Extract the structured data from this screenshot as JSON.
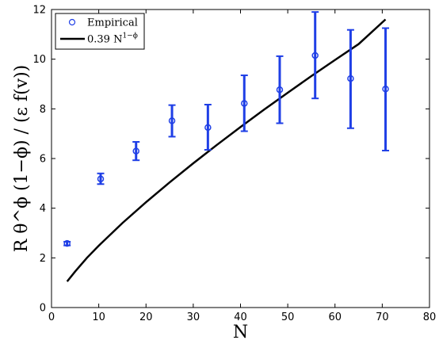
{
  "chart_data": {
    "type": "scatter",
    "xlabel": "N",
    "ylabel": "R θ^ϕ (1−ϕ) / (ε f(v))",
    "xlim": [
      0,
      80
    ],
    "ylim": [
      0,
      12
    ],
    "xticks": [
      0,
      10,
      20,
      30,
      40,
      50,
      60,
      70,
      80
    ],
    "yticks": [
      0,
      2,
      4,
      6,
      8,
      10,
      12
    ],
    "grid": false,
    "legend_position": "top-left",
    "series": [
      {
        "name": "Empirical",
        "kind": "errorbar",
        "color": "#1f3fe6",
        "x": [
          3.3,
          10.4,
          17.9,
          25.5,
          33.1,
          40.8,
          48.3,
          55.8,
          63.3,
          70.7
        ],
        "y": [
          2.58,
          5.18,
          6.3,
          7.52,
          7.25,
          8.22,
          8.77,
          10.15,
          9.22,
          8.8
        ],
        "y_low": [
          2.5,
          4.97,
          5.93,
          6.88,
          6.35,
          7.1,
          7.42,
          8.42,
          7.22,
          6.32
        ],
        "y_high": [
          2.65,
          5.4,
          6.67,
          8.15,
          8.17,
          9.35,
          10.12,
          11.9,
          11.18,
          11.25
        ]
      },
      {
        "name": "0.39 N",
        "name_superscript": "1−ϕ",
        "kind": "line",
        "color": "#000000",
        "x": [
          3.3,
          5,
          7.5,
          10,
          15,
          20,
          25,
          30,
          35,
          40,
          45,
          50,
          55,
          60,
          65,
          70.7
        ],
        "y": [
          1.05,
          1.45,
          2.0,
          2.49,
          3.4,
          4.24,
          5.04,
          5.81,
          6.55,
          7.27,
          7.97,
          8.65,
          9.32,
          9.97,
          10.61,
          11.6
        ]
      }
    ]
  }
}
